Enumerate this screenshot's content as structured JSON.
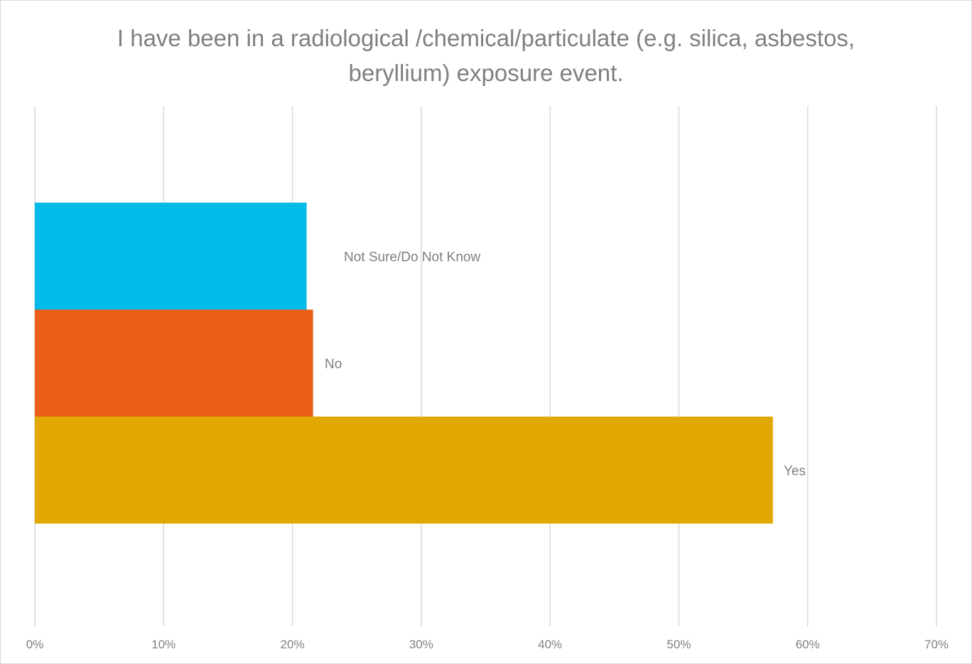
{
  "chart_data": {
    "type": "bar",
    "orientation": "horizontal",
    "title": "I have been in a radiological /chemical/particulate (e.g. silica, asbestos,\nberyllium) exposure event.",
    "categories": [
      "Yes",
      "No",
      "Not Sure/Do Not Know"
    ],
    "values": [
      57.3,
      21.6,
      21.1
    ],
    "colors": [
      "#e0a800",
      "#eb5e17",
      "#00bbe8"
    ],
    "x_ticks": [
      "0%",
      "10%",
      "20%",
      "30%",
      "40%",
      "50%",
      "60%",
      "70%"
    ],
    "xlim": [
      0,
      70
    ],
    "grid": true,
    "legend": "none"
  }
}
